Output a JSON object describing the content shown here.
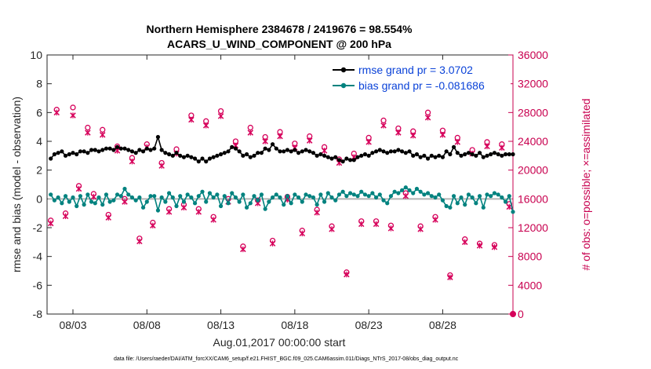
{
  "chart_data": {
    "type": "line",
    "title": [
      "Northern Hemisphere 2384678 / 2419676 = 98.554%",
      "ACARS_U_WIND_COMPONENT @ 200 hPa"
    ],
    "xlabel": "Aug.01,2017 00:00:00 start",
    "ylabel_left": "rmse and bias (model - observation)",
    "ylabel_right": "# of obs: o=possible; ×=assimilated",
    "footer": "data file: /Users/raeder/DAI/ATM_forcXX/CAM6_setup/f.e21.FHIST_BGC.f09_025.CAM6assim.011/Diags_NTrS_2017-08/obs_diag_output.nc",
    "x_unit": "days since Aug.01,2017 00:00",
    "xlim": [
      0.25,
      31.75
    ],
    "ylim_left": [
      -8,
      10
    ],
    "ylim_right": [
      0,
      36000
    ],
    "x_ticks": [
      2,
      7,
      12,
      17,
      22,
      27
    ],
    "x_tick_labels": [
      "08/03",
      "08/08",
      "08/13",
      "08/18",
      "08/23",
      "08/28"
    ],
    "y_left_ticks": [
      -8,
      -6,
      -4,
      -2,
      0,
      2,
      4,
      6,
      8,
      10
    ],
    "y_right_ticks": [
      0,
      4000,
      8000,
      12000,
      16000,
      20000,
      24000,
      28000,
      32000,
      36000
    ],
    "zero_line": 0,
    "legend": {
      "placement": "top-right",
      "entries": [
        "rmse grand pr = 3.0702",
        "bias grand pr = -0.081686"
      ]
    },
    "colors": {
      "rmse": "#000000",
      "bias": "#00827f",
      "obs": "#d6005a",
      "right_axis": "#c8004f",
      "legend_text": "#0a42d8",
      "zero_line": "#b4b4b4"
    },
    "series": [
      {
        "name": "rmse",
        "values": [
          2.8,
          3.1,
          3.2,
          3.3,
          3.0,
          3.1,
          3.2,
          3.1,
          3.3,
          3.3,
          3.2,
          3.4,
          3.4,
          3.3,
          3.4,
          3.5,
          3.5,
          3.4,
          3.6,
          3.5,
          3.5,
          3.4,
          3.3,
          3.2,
          3.4,
          3.3,
          3.5,
          3.4,
          3.5,
          4.3,
          3.4,
          3.2,
          3.1,
          3.0,
          3.2,
          3.0,
          2.9,
          3.0,
          2.9,
          2.8,
          2.6,
          2.8,
          2.6,
          2.8,
          2.9,
          3.0,
          3.1,
          3.2,
          3.3,
          3.6,
          3.5,
          3.3,
          3.0,
          3.1,
          2.9,
          3.0,
          3.2,
          3.2,
          3.5,
          3.4,
          3.8,
          3.5,
          3.3,
          3.3,
          3.4,
          3.3,
          3.4,
          3.2,
          3.3,
          3.4,
          3.3,
          3.2,
          3.0,
          3.1,
          3.0,
          2.9,
          2.8,
          2.9,
          2.7,
          2.6,
          2.8,
          2.7,
          2.7,
          2.9,
          3.0,
          3.1,
          3.0,
          3.2,
          3.3,
          3.4,
          3.3,
          3.2,
          3.3,
          3.3,
          3.4,
          3.3,
          3.2,
          3.3,
          3.0,
          3.1,
          2.9,
          3.0,
          2.8,
          3.0,
          2.9,
          3.0,
          2.9,
          3.3,
          3.1,
          3.6,
          3.2,
          3.0,
          3.1,
          3.2,
          3.1,
          3.0,
          3.2,
          2.9,
          3.0,
          3.1,
          3.2,
          3.1,
          3.0,
          3.1,
          3.1,
          3.1
        ]
      },
      {
        "name": "bias",
        "values": [
          0.3,
          -0.1,
          0.1,
          -0.3,
          0.2,
          -0.2,
          0.1,
          -0.5,
          0.2,
          -0.4,
          0.3,
          -0.2,
          -0.3,
          0.1,
          -0.4,
          0.3,
          -0.2,
          -0.1,
          0.3,
          0.2,
          0.7,
          0.3,
          0.1,
          -0.1,
          0.1,
          -0.6,
          -0.2,
          0.2,
          0.2,
          -0.8,
          0.1,
          -0.2,
          0.4,
          0.1,
          -0.5,
          0.2,
          -0.2,
          0.3,
          0.1,
          -0.3,
          0.2,
          0.5,
          -0.2,
          0.4,
          0.1,
          0.3,
          -0.5,
          0.2,
          -0.3,
          0.4,
          0.1,
          -0.2,
          0.3,
          -0.6,
          -0.3,
          0.2,
          -0.1,
          0.3,
          -0.7,
          -0.2,
          0.1,
          0.3,
          0.1,
          -0.4,
          0.2,
          -0.3,
          0.3,
          0.1,
          -0.2,
          0.3,
          0.2,
          0.1,
          -0.4,
          0.3,
          -0.2,
          0.4,
          0.1,
          -0.1,
          0.3,
          0.5,
          0.2,
          0.4,
          0.3,
          0.2,
          0.5,
          0.3,
          0.2,
          0.4,
          0.1,
          0.3,
          -0.1,
          -0.3,
          0.2,
          0.5,
          0.4,
          0.6,
          0.8,
          0.6,
          0.4,
          0.7,
          0.5,
          0.3,
          0.4,
          0.2,
          0.1,
          0.3,
          -0.1,
          -0.5,
          -0.6,
          0.2,
          -0.3,
          0.1,
          -0.4,
          0.3,
          0.1,
          -0.3,
          0.2,
          -0.6,
          0.3,
          0.2,
          0.4,
          0.3,
          0.1,
          -0.2,
          0.2,
          -0.9
        ]
      }
    ],
    "obs_count": [
      {
        "name": "possible",
        "x": [
          0.5,
          0.9,
          1.5,
          2.0,
          2.4,
          3.0,
          3.4,
          4.0,
          4.4,
          5.0,
          5.5,
          6.0,
          6.5,
          7.0,
          7.4,
          8.0,
          8.5,
          9.0,
          9.5,
          10.0,
          10.5,
          11.0,
          11.5,
          12.0,
          12.5,
          13.0,
          13.5,
          14.0,
          14.5,
          15.0,
          15.5,
          16.0,
          16.5,
          17.0,
          17.5,
          18.0,
          18.5,
          19.0,
          19.5,
          20.0,
          20.5,
          21.0,
          21.5,
          22.0,
          22.5,
          23.0,
          23.5,
          24.0,
          24.5,
          25.0,
          25.5,
          26.0,
          26.5,
          27.0,
          27.5,
          28.0,
          28.5,
          29.0,
          29.5,
          30.0,
          30.5,
          31.0,
          31.5
        ],
        "values": [
          13000,
          28400,
          14000,
          28700,
          17800,
          25900,
          16700,
          25600,
          13800,
          23300,
          16000,
          21700,
          10500,
          23600,
          12700,
          21000,
          14600,
          22900,
          15200,
          27600,
          14600,
          26800,
          13500,
          28200,
          16000,
          24000,
          9400,
          25900,
          15800,
          24600,
          10200,
          25300,
          16300,
          23700,
          11600,
          24700,
          14500,
          23200,
          12200,
          21500,
          5800,
          22300,
          12900,
          24500,
          12900,
          26900,
          12300,
          25800,
          16800,
          25400,
          12200,
          28000,
          13500,
          25500,
          5400,
          24500,
          10400,
          22800,
          9800,
          23900,
          9600,
          23600,
          15300
        ]
      },
      {
        "name": "assimilated",
        "x": [
          0.5,
          0.9,
          1.5,
          2.0,
          2.4,
          3.0,
          3.4,
          4.0,
          4.4,
          5.0,
          5.5,
          6.0,
          6.5,
          7.0,
          7.4,
          8.0,
          8.5,
          9.0,
          9.5,
          10.0,
          10.5,
          11.0,
          11.5,
          12.0,
          12.5,
          13.0,
          13.5,
          14.0,
          14.5,
          15.0,
          15.5,
          16.0,
          16.5,
          17.0,
          17.5,
          18.0,
          18.5,
          19.0,
          19.5,
          20.0,
          20.5,
          21.0,
          21.5,
          22.0,
          22.5,
          23.0,
          23.5,
          24.0,
          24.5,
          25.0,
          25.5,
          26.0,
          26.5,
          27.0,
          27.5,
          28.0,
          28.5,
          29.0,
          29.5,
          30.0,
          30.5,
          31.0,
          31.5
        ],
        "values": [
          12600,
          28000,
          13600,
          27600,
          17400,
          25200,
          16300,
          24900,
          13400,
          22700,
          15600,
          21200,
          10100,
          23200,
          12300,
          20600,
          14200,
          22300,
          14800,
          27000,
          14200,
          26200,
          13100,
          27500,
          15600,
          23400,
          9000,
          25200,
          15400,
          24000,
          9800,
          24700,
          15900,
          23100,
          11200,
          24100,
          14100,
          22700,
          11800,
          21000,
          5500,
          21800,
          12500,
          23900,
          12500,
          26200,
          11900,
          25200,
          16400,
          24800,
          11800,
          27300,
          13100,
          24900,
          5100,
          23900,
          10000,
          22300,
          9500,
          23300,
          9300,
          23100,
          14900
        ]
      }
    ],
    "final_obs_value": 0
  }
}
